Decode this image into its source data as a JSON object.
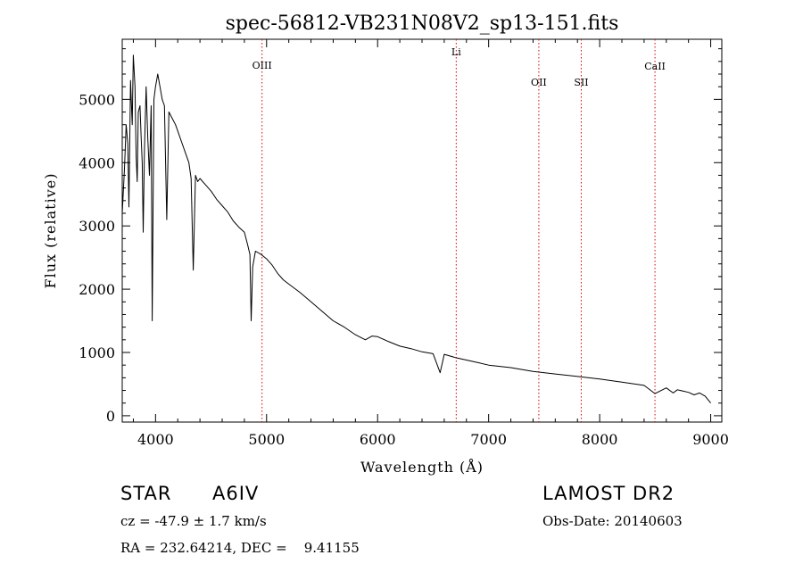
{
  "chart_data": {
    "type": "line",
    "title": "spec-56812-VB231N08V2_sp13-151.fits",
    "xlabel": "Wavelength (Å)",
    "ylabel": "Flux (relative)",
    "xlim": [
      3700,
      9100
    ],
    "ylim": [
      -100,
      5950
    ],
    "xticks": [
      4000,
      5000,
      6000,
      7000,
      8000,
      9000
    ],
    "yticks": [
      0,
      1000,
      2000,
      3000,
      4000,
      5000
    ],
    "grid": false,
    "line_color": "#000000",
    "marker_color": "#d90000",
    "lines": [
      {
        "label": "OIII",
        "wavelength": 4959
      },
      {
        "label": "Li",
        "wavelength": 6708
      },
      {
        "label": "OII",
        "wavelength": 7452
      },
      {
        "label": "SII",
        "wavelength": 7834
      },
      {
        "label": "CaII",
        "wavelength": 8498
      }
    ],
    "series": [
      {
        "x": [
          3700,
          3720,
          3735,
          3750,
          3760,
          3775,
          3790,
          3800,
          3815,
          3825,
          3835,
          3845,
          3860,
          3870,
          3880,
          3889,
          3900,
          3915,
          3930,
          3945,
          3960,
          3970,
          3985,
          4000,
          4020,
          4040,
          4060,
          4080,
          4101,
          4120,
          4150,
          4180,
          4210,
          4240,
          4270,
          4300,
          4320,
          4340,
          4360,
          4380,
          4400,
          4450,
          4500,
          4550,
          4600,
          4650,
          4700,
          4750,
          4800,
          4830,
          4850,
          4861,
          4875,
          4900,
          4950,
          5000,
          5050,
          5100,
          5150,
          5200,
          5300,
          5400,
          5500,
          5600,
          5700,
          5800,
          5890,
          5950,
          6000,
          6100,
          6200,
          6300,
          6400,
          6500,
          6563,
          6600,
          6700,
          6800,
          6900,
          7000,
          7200,
          7400,
          7600,
          7800,
          8000,
          8200,
          8400,
          8498,
          8600,
          8662,
          8700,
          8800,
          8850,
          8900,
          8950,
          9000
        ],
        "y": [
          3200,
          3900,
          4600,
          4300,
          3300,
          5300,
          4600,
          5700,
          5200,
          4100,
          3700,
          4800,
          4900,
          4400,
          4000,
          2900,
          4200,
          5200,
          4400,
          3800,
          4900,
          1500,
          5000,
          5200,
          5400,
          5200,
          5000,
          4900,
          3100,
          4800,
          4700,
          4600,
          4450,
          4300,
          4150,
          4000,
          3750,
          2300,
          3800,
          3700,
          3750,
          3650,
          3550,
          3420,
          3320,
          3220,
          3080,
          2980,
          2900,
          2700,
          2550,
          1500,
          2350,
          2600,
          2550,
          2480,
          2380,
          2250,
          2150,
          2080,
          1950,
          1800,
          1650,
          1500,
          1400,
          1280,
          1200,
          1260,
          1250,
          1170,
          1100,
          1060,
          1010,
          980,
          680,
          970,
          920,
          880,
          840,
          800,
          760,
          700,
          660,
          620,
          580,
          530,
          480,
          350,
          440,
          360,
          410,
          370,
          330,
          360,
          310,
          200
        ]
      }
    ]
  },
  "footer": {
    "object_class": "STAR",
    "subclass": "A6IV",
    "survey": "LAMOST DR2",
    "cz": "cz = -47.9 ± 1.7 km/s",
    "obs_date": "Obs-Date: 20140603",
    "coords": "RA = 232.64214, DEC =    9.41155"
  }
}
